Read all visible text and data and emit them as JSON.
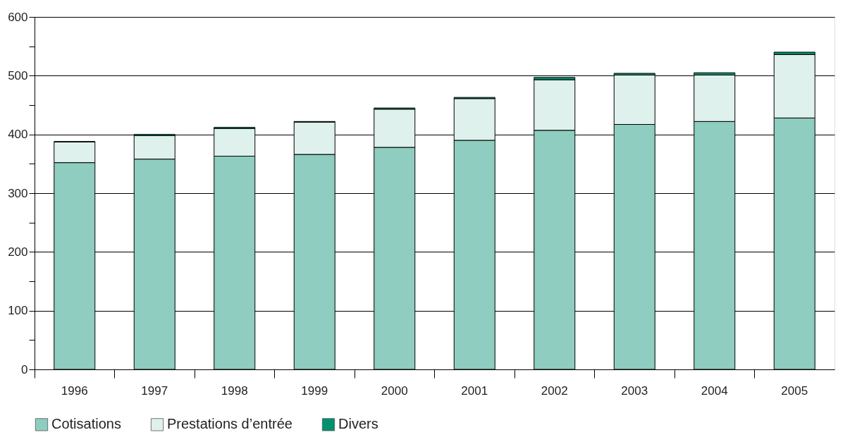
{
  "chart_data": {
    "type": "bar",
    "stacked": true,
    "categories": [
      "1996",
      "1997",
      "1998",
      "1999",
      "2000",
      "2001",
      "2002",
      "2003",
      "2004",
      "2005"
    ],
    "series": [
      {
        "name": "Cotisations",
        "color": "#8ecdbf",
        "values": [
          352,
          358,
          363,
          366,
          378,
          390,
          407,
          417,
          422,
          428
        ]
      },
      {
        "name": "Prestations d’entrée",
        "color": "#dff1ec",
        "values": [
          35,
          40,
          47,
          55,
          65,
          71,
          86,
          84,
          79,
          108
        ]
      },
      {
        "name": "Divers",
        "color": "#00916e",
        "values": [
          1,
          2,
          2,
          1,
          2,
          2,
          4,
          3,
          4,
          4
        ]
      }
    ],
    "ylim": [
      0,
      600
    ],
    "yticks": [
      0,
      {
        "value": 50,
        "label": null
      },
      100,
      {
        "value": 150,
        "label": null
      },
      200,
      {
        "value": 250,
        "label": null
      },
      300,
      {
        "value": 350,
        "label": null
      },
      400,
      {
        "value": 450,
        "label": null
      },
      500,
      {
        "value": 550,
        "label": null
      },
      600
    ],
    "grid": "y",
    "legend": "bottom left"
  }
}
